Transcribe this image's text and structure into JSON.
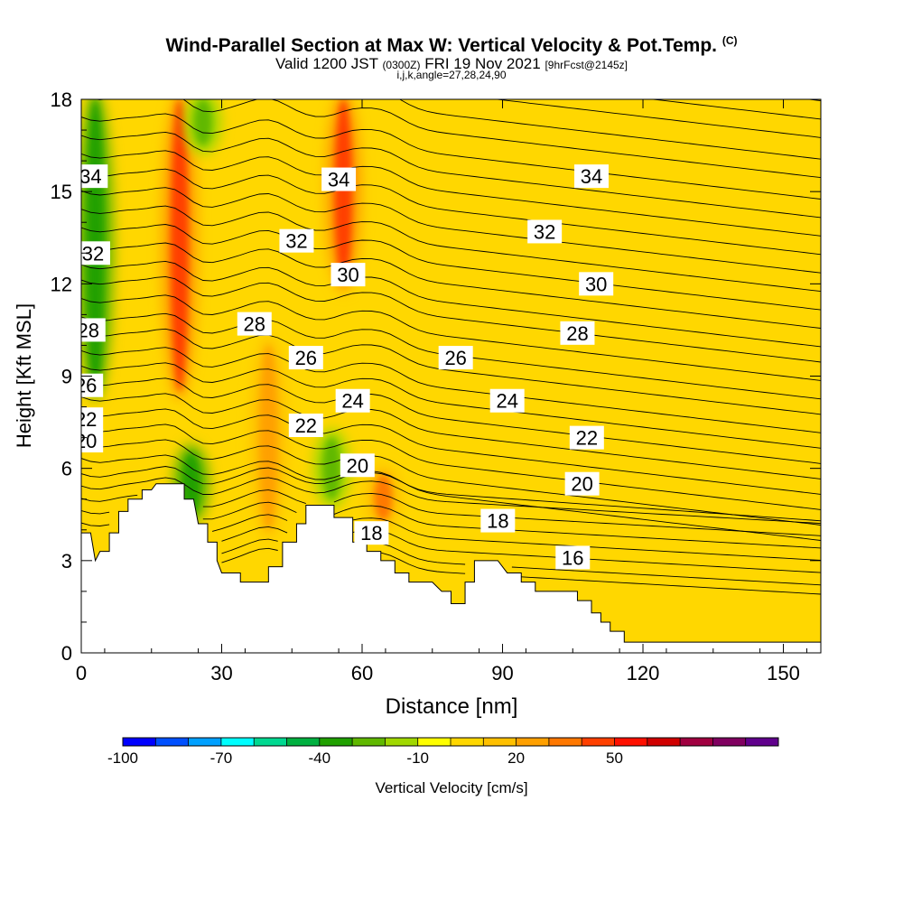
{
  "header": {
    "title": "Wind-Parallel Section at Max W: Vertical Velocity & Pot.Temp.",
    "copyright": "(C)",
    "valid_prefix": "Valid 1200 JST",
    "valid_utc": "(0300Z)",
    "valid_date": "FRI 19 Nov 2021",
    "forecast": "[9hrFcst@2145z]",
    "indices": "i,j,k,angle=27,28,24,90"
  },
  "chart_data": {
    "type": "heatmap",
    "xlabel": "Distance [nm]",
    "ylabel": "Height [Kft MSL]",
    "xlim": [
      0,
      158
    ],
    "ylim": [
      0,
      18
    ],
    "x_ticks": [
      "0",
      "30",
      "60",
      "90",
      "120",
      "150"
    ],
    "y_ticks": [
      "0",
      "3",
      "6",
      "9",
      "12",
      "15",
      "18"
    ],
    "background_velocity_color": "#ffd700",
    "terrain": [
      [
        0,
        3.9
      ],
      [
        2,
        3.9
      ],
      [
        3,
        3.0
      ],
      [
        4,
        3.3
      ],
      [
        6,
        3.3
      ],
      [
        6,
        3.9
      ],
      [
        8,
        3.9
      ],
      [
        8,
        4.6
      ],
      [
        10,
        4.6
      ],
      [
        10,
        5.0
      ],
      [
        13,
        5.0
      ],
      [
        13,
        5.3
      ],
      [
        15,
        5.3
      ],
      [
        16,
        5.5
      ],
      [
        22,
        5.5
      ],
      [
        22,
        5.0
      ],
      [
        24,
        5.0
      ],
      [
        25,
        4.2
      ],
      [
        27,
        4.2
      ],
      [
        27,
        3.6
      ],
      [
        29,
        3.6
      ],
      [
        29,
        3.0
      ],
      [
        30,
        2.6
      ],
      [
        34,
        2.6
      ],
      [
        34,
        2.3
      ],
      [
        40,
        2.3
      ],
      [
        40,
        2.8
      ],
      [
        43,
        2.8
      ],
      [
        43,
        3.6
      ],
      [
        46,
        3.6
      ],
      [
        46,
        4.2
      ],
      [
        48,
        4.2
      ],
      [
        48,
        4.8
      ],
      [
        54,
        4.8
      ],
      [
        54,
        4.4
      ],
      [
        58,
        4.4
      ],
      [
        58,
        3.6
      ],
      [
        61,
        3.6
      ],
      [
        61,
        3.3
      ],
      [
        64,
        3.3
      ],
      [
        64,
        3.0
      ],
      [
        67,
        3.0
      ],
      [
        67,
        2.6
      ],
      [
        70,
        2.6
      ],
      [
        70,
        2.3
      ],
      [
        75,
        2.3
      ],
      [
        77,
        2.0
      ],
      [
        79,
        2.0
      ],
      [
        79,
        1.6
      ],
      [
        82,
        1.6
      ],
      [
        82,
        2.3
      ],
      [
        84,
        2.3
      ],
      [
        84,
        3.0
      ],
      [
        89,
        3.0
      ],
      [
        91,
        2.6
      ],
      [
        94,
        2.6
      ],
      [
        94,
        2.3
      ],
      [
        97,
        2.3
      ],
      [
        97,
        2.0
      ],
      [
        106,
        2.0
      ],
      [
        106,
        1.7
      ],
      [
        109,
        1.7
      ],
      [
        109,
        1.3
      ],
      [
        111,
        1.3
      ],
      [
        111,
        1.0
      ],
      [
        113,
        1.0
      ],
      [
        113,
        0.7
      ],
      [
        116,
        0.7
      ],
      [
        116,
        0.35
      ],
      [
        158,
        0.35
      ]
    ],
    "velocity_maxima": [
      {
        "x": 21,
        "top": 18,
        "bottom": 8.5,
        "value": 48,
        "label": "updraft"
      },
      {
        "x": 56,
        "top": 18,
        "bottom": 12,
        "value": 45,
        "label": "updraft"
      },
      {
        "x": 40,
        "top": 10,
        "bottom": 4,
        "value": 25,
        "label": "updraft"
      },
      {
        "x": 64.5,
        "top": 5.8,
        "bottom": 4.3,
        "value": 35,
        "label": "updraft"
      }
    ],
    "velocity_minima": [
      {
        "x": 3,
        "top": 18,
        "bottom": 8.5,
        "value": -40,
        "label": "downdraft"
      },
      {
        "x": 26,
        "top": 18,
        "bottom": 16.5,
        "value": -30,
        "label": "downdraft"
      },
      {
        "x": 23.5,
        "top": 6.5,
        "bottom": 4.5,
        "value": -35,
        "label": "downdraft"
      },
      {
        "x": 53.5,
        "top": 7,
        "bottom": 5,
        "value": -30,
        "label": "downdraft"
      }
    ],
    "isentropes_left_values": [
      17.5,
      17.8,
      18.2,
      18.6,
      19.0,
      19.4,
      19.8,
      20.2,
      20.7,
      21.2,
      21.7,
      22.2,
      22.7,
      23.2,
      23.7,
      24.2,
      24.8,
      25.3,
      25.9,
      26.5,
      27.0,
      27.6,
      28.2,
      28.8,
      29.4,
      30.0,
      30.6,
      31.2,
      31.8,
      32.5,
      33.1,
      33.8,
      34.4,
      35.0,
      35.7,
      36.3
    ],
    "theta_labels": [
      {
        "text": "34",
        "x": 2.0,
        "y": 15.5
      },
      {
        "text": "32",
        "x": 2.5,
        "y": 13.0
      },
      {
        "text": "28",
        "x": 1.5,
        "y": 10.5
      },
      {
        "text": "26",
        "x": 1.0,
        "y": 8.7
      },
      {
        "text": "22",
        "x": 1.0,
        "y": 7.6
      },
      {
        "text": "20",
        "x": 1.0,
        "y": 6.9
      },
      {
        "text": "34",
        "x": 55,
        "y": 15.4
      },
      {
        "text": "32",
        "x": 46,
        "y": 13.4
      },
      {
        "text": "28",
        "x": 37,
        "y": 10.7
      },
      {
        "text": "30",
        "x": 57,
        "y": 12.3
      },
      {
        "text": "26",
        "x": 48,
        "y": 9.6
      },
      {
        "text": "22",
        "x": 48,
        "y": 7.4
      },
      {
        "text": "24",
        "x": 58,
        "y": 8.2
      },
      {
        "text": "20",
        "x": 59,
        "y": 6.1
      },
      {
        "text": "18",
        "x": 62,
        "y": 3.9
      },
      {
        "text": "26",
        "x": 80,
        "y": 9.6
      },
      {
        "text": "24",
        "x": 91,
        "y": 8.2
      },
      {
        "text": "18",
        "x": 89,
        "y": 4.3
      },
      {
        "text": "32",
        "x": 99,
        "y": 13.7
      },
      {
        "text": "28",
        "x": 106,
        "y": 10.4
      },
      {
        "text": "22",
        "x": 108,
        "y": 7.0
      },
      {
        "text": "20",
        "x": 107,
        "y": 5.5
      },
      {
        "text": "16",
        "x": 105,
        "y": 3.1
      },
      {
        "text": "34",
        "x": 109,
        "y": 15.5
      },
      {
        "text": "30",
        "x": 110,
        "y": 12.0
      }
    ]
  },
  "colorbar": {
    "title": "Vertical Velocity [cm/s]",
    "colors": [
      "#0000ff",
      "#0050ff",
      "#00a0ff",
      "#00ffff",
      "#00d890",
      "#00b040",
      "#20a000",
      "#60b800",
      "#a0d800",
      "#ffff00",
      "#ffd700",
      "#ffc000",
      "#ffa000",
      "#ff7800",
      "#ff4000",
      "#ff1000",
      "#d00000",
      "#a00040",
      "#800060",
      "#60008c"
    ],
    "tick_labels": [
      {
        "value": -100,
        "text": "-100"
      },
      {
        "value": -70,
        "text": "-70"
      },
      {
        "value": -40,
        "text": "-40"
      },
      {
        "value": -10,
        "text": "-10"
      },
      {
        "value": 20,
        "text": "20"
      },
      {
        "value": 50,
        "text": "50"
      }
    ],
    "min": -100,
    "step": 10
  }
}
